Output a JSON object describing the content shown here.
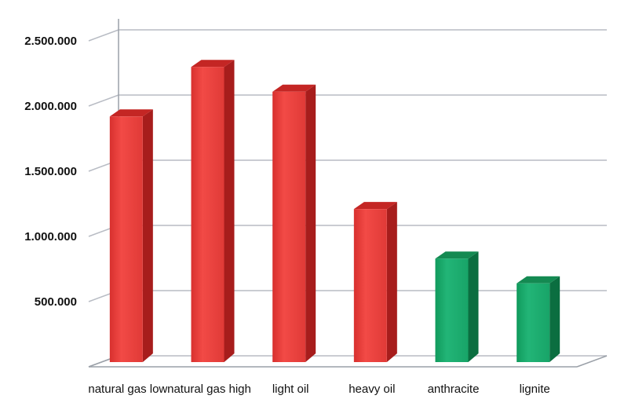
{
  "chart_data": {
    "type": "bar",
    "title": "",
    "xlabel": "",
    "ylabel": "",
    "categories": [
      "natural gas low",
      "natural gas high",
      "light oil",
      "heavy oil",
      "anthracite",
      "lignite"
    ],
    "values": [
      1920000,
      2300000,
      2110000,
      1210000,
      830000,
      640000
    ],
    "ylim": [
      0,
      2500000
    ],
    "yticks": [
      {
        "value": 500000,
        "label": "500.000"
      },
      {
        "value": 1000000,
        "label": "1.000.000"
      },
      {
        "value": 1500000,
        "label": "1.500.000"
      },
      {
        "value": 2000000,
        "label": "2.000.000"
      },
      {
        "value": 2500000,
        "label": "2.500.000"
      }
    ],
    "grid": true,
    "bar_colors": [
      "#e8403e",
      "#e8403e",
      "#e8403e",
      "#e8403e",
      "#1ea66c",
      "#1ea66c"
    ],
    "style": "3d"
  }
}
